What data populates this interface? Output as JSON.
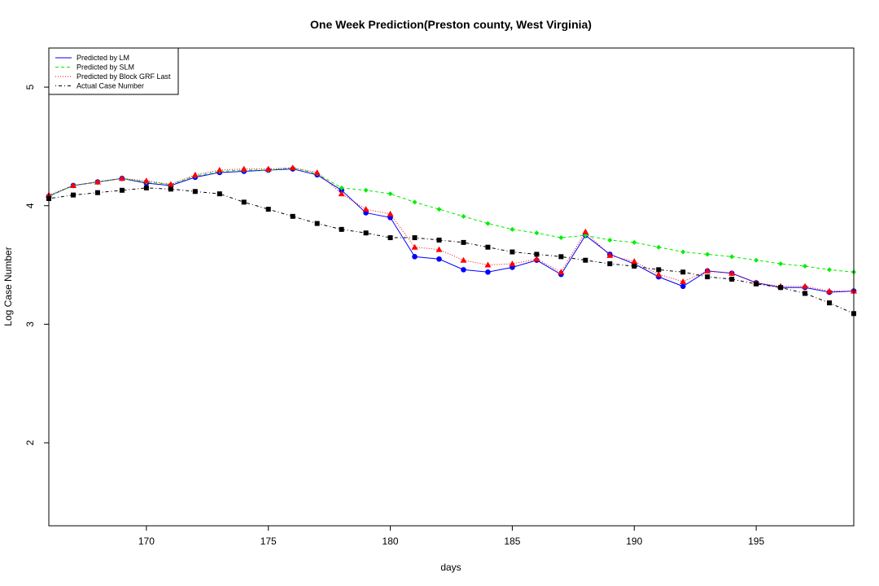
{
  "chart_data": {
    "type": "line",
    "title": "One Week Prediction(Preston county, West Virginia)",
    "xlabel": "days",
    "ylabel": "Log Case Number",
    "xlim": [
      166,
      199
    ],
    "ylim": [
      1.3,
      5.33
    ],
    "xticks": [
      170,
      175,
      180,
      185,
      190,
      195
    ],
    "yticks": [
      2,
      3,
      4,
      5
    ],
    "grid": false,
    "legend_position": "top-left",
    "x": [
      166,
      167,
      168,
      169,
      170,
      171,
      172,
      173,
      174,
      175,
      176,
      177,
      178,
      179,
      180,
      181,
      182,
      183,
      184,
      185,
      186,
      187,
      188,
      189,
      190,
      191,
      192,
      193,
      194,
      195,
      196,
      197,
      198,
      199
    ],
    "series": [
      {
        "name": "Predicted by LM",
        "color": "#0000ff",
        "line": "solid",
        "marker": "circle",
        "values": [
          4.08,
          4.17,
          4.2,
          4.23,
          4.19,
          4.17,
          4.24,
          4.28,
          4.29,
          4.3,
          4.31,
          4.26,
          4.13,
          3.94,
          3.9,
          3.57,
          3.55,
          3.46,
          3.44,
          3.48,
          3.54,
          3.42,
          3.75,
          3.59,
          3.51,
          3.4,
          3.32,
          3.45,
          3.43,
          3.35,
          3.31,
          3.31,
          3.27,
          3.28
        ]
      },
      {
        "name": "Predicted by SLM",
        "color": "#00ee00",
        "line": "dashed",
        "marker": "diamond",
        "values": [
          4.08,
          4.17,
          4.2,
          4.23,
          4.2,
          4.18,
          4.25,
          4.29,
          4.3,
          4.3,
          4.32,
          4.27,
          4.15,
          4.13,
          4.1,
          4.03,
          3.97,
          3.91,
          3.85,
          3.8,
          3.77,
          3.73,
          3.75,
          3.71,
          3.69,
          3.65,
          3.61,
          3.59,
          3.57,
          3.54,
          3.51,
          3.49,
          3.46,
          3.44
        ]
      },
      {
        "name": "Predicted by Block GRF Last",
        "color": "#ff0000",
        "line": "dotted",
        "marker": "triangle",
        "values": [
          4.09,
          4.17,
          4.2,
          4.23,
          4.21,
          4.18,
          4.26,
          4.3,
          4.31,
          4.31,
          4.32,
          4.28,
          4.1,
          3.97,
          3.93,
          3.65,
          3.63,
          3.54,
          3.5,
          3.51,
          3.55,
          3.44,
          3.78,
          3.58,
          3.53,
          3.42,
          3.36,
          3.45,
          3.43,
          3.35,
          3.32,
          3.32,
          3.28,
          3.28
        ]
      },
      {
        "name": "Actual Case Number",
        "color": "#000000",
        "line": "dashdot",
        "marker": "square",
        "values": [
          4.06,
          4.09,
          4.11,
          4.13,
          4.15,
          4.14,
          4.12,
          4.1,
          4.03,
          3.97,
          3.91,
          3.85,
          3.8,
          3.77,
          3.73,
          3.73,
          3.71,
          3.69,
          3.65,
          3.61,
          3.59,
          3.57,
          3.54,
          3.51,
          3.49,
          3.46,
          3.44,
          3.4,
          3.38,
          3.34,
          3.31,
          3.26,
          3.18,
          3.09
        ]
      }
    ]
  }
}
